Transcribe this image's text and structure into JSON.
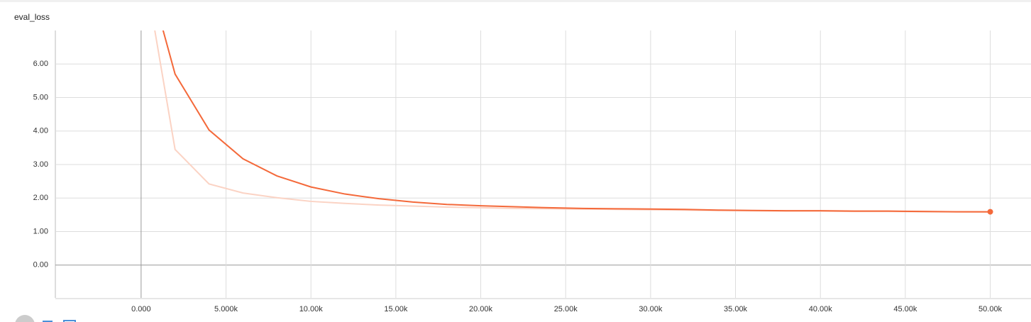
{
  "chart_data": {
    "type": "line",
    "title": "eval_loss",
    "x": [
      0,
      2000,
      4000,
      6000,
      8000,
      10000,
      12000,
      14000,
      16000,
      18000,
      20000,
      22000,
      24000,
      26000,
      28000,
      30000,
      32000,
      34000,
      36000,
      38000,
      40000,
      42000,
      44000,
      46000,
      48000,
      50000
    ],
    "series": [
      {
        "color": "#fbd3c4",
        "values": [
          9.4,
          3.45,
          2.42,
          2.15,
          2.01,
          1.9,
          1.84,
          1.79,
          1.76,
          1.73,
          1.71,
          1.69,
          1.68,
          1.67,
          1.66,
          1.65,
          1.64,
          1.63,
          1.62,
          1.61,
          1.61,
          1.6,
          1.6,
          1.59,
          1.59,
          1.58
        ]
      },
      {
        "color": "#f4693a",
        "values": [
          9.4,
          5.7,
          4.03,
          3.17,
          2.66,
          2.33,
          2.12,
          1.98,
          1.88,
          1.81,
          1.77,
          1.74,
          1.71,
          1.69,
          1.68,
          1.67,
          1.66,
          1.64,
          1.63,
          1.62,
          1.62,
          1.61,
          1.61,
          1.6,
          1.59,
          1.59
        ]
      }
    ],
    "xlim": [
      -5050,
      52400
    ],
    "ylim": [
      -0.98,
      7.0
    ],
    "xticks": [
      {
        "value": 0,
        "label": "0.000"
      },
      {
        "value": 5000,
        "label": "5.000k"
      },
      {
        "value": 10000,
        "label": "10.00k"
      },
      {
        "value": 15000,
        "label": "15.00k"
      },
      {
        "value": 20000,
        "label": "20.00k"
      },
      {
        "value": 25000,
        "label": "25.00k"
      },
      {
        "value": 30000,
        "label": "30.00k"
      },
      {
        "value": 35000,
        "label": "35.00k"
      },
      {
        "value": 40000,
        "label": "40.00k"
      },
      {
        "value": 45000,
        "label": "45.00k"
      },
      {
        "value": 50000,
        "label": "50.00k"
      }
    ],
    "yticks": [
      {
        "value": 0,
        "label": "0.00"
      },
      {
        "value": 1,
        "label": "1.00"
      },
      {
        "value": 2,
        "label": "2.00"
      },
      {
        "value": 3,
        "label": "3.00"
      },
      {
        "value": 4,
        "label": "4.00"
      },
      {
        "value": 5,
        "label": "5.00"
      },
      {
        "value": 6,
        "label": "6.00"
      }
    ],
    "grid": true
  }
}
